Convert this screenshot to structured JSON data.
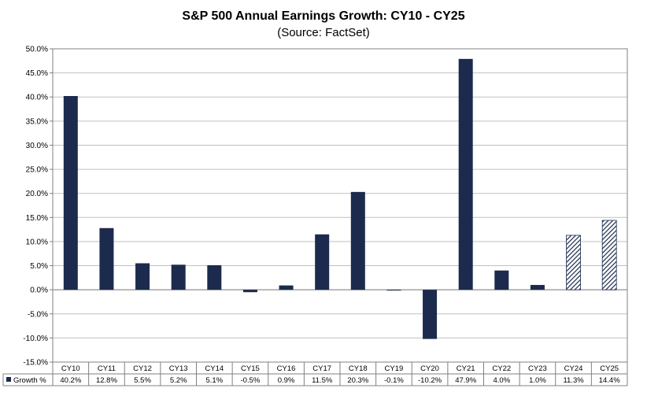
{
  "chart_data": {
    "type": "bar",
    "title": "S&P 500 Annual Earnings Growth: CY10 - CY25",
    "subtitle": "(Source: FactSet)",
    "categories": [
      "CY10",
      "CY11",
      "CY12",
      "CY13",
      "CY14",
      "CY15",
      "CY16",
      "CY17",
      "CY18",
      "CY19",
      "CY20",
      "CY21",
      "CY22",
      "CY23",
      "CY24",
      "CY25"
    ],
    "series": [
      {
        "name": "Growth %",
        "values": [
          40.2,
          12.8,
          5.5,
          5.2,
          5.1,
          -0.5,
          0.9,
          11.5,
          20.3,
          -0.1,
          -10.2,
          47.9,
          4.0,
          1.0,
          11.3,
          14.4
        ],
        "labels": [
          "40.2%",
          "12.8%",
          "5.5%",
          "5.2%",
          "5.1%",
          "-0.5%",
          "0.9%",
          "11.5%",
          "20.3%",
          "-0.1%",
          "-10.2%",
          "47.9%",
          "4.0%",
          "1.0%",
          "11.3%",
          "14.4%"
        ],
        "hatched_categories": [
          "CY24",
          "CY25"
        ]
      }
    ],
    "ylim": [
      -15,
      50
    ],
    "yticks": [
      -15,
      -10,
      -5,
      0,
      5,
      10,
      15,
      20,
      25,
      30,
      35,
      40,
      45,
      50
    ],
    "ytick_labels": [
      "-15.0%",
      "-10.0%",
      "-5.0%",
      "0.0%",
      "5.0%",
      "10.0%",
      "15.0%",
      "20.0%",
      "25.0%",
      "30.0%",
      "35.0%",
      "40.0%",
      "45.0%",
      "50.0%"
    ],
    "grid": true,
    "legend_placement": "data-table-left",
    "colors": {
      "bar": "#1c2a4e",
      "grid": "#c0c0c0",
      "axis": "#808080"
    }
  }
}
